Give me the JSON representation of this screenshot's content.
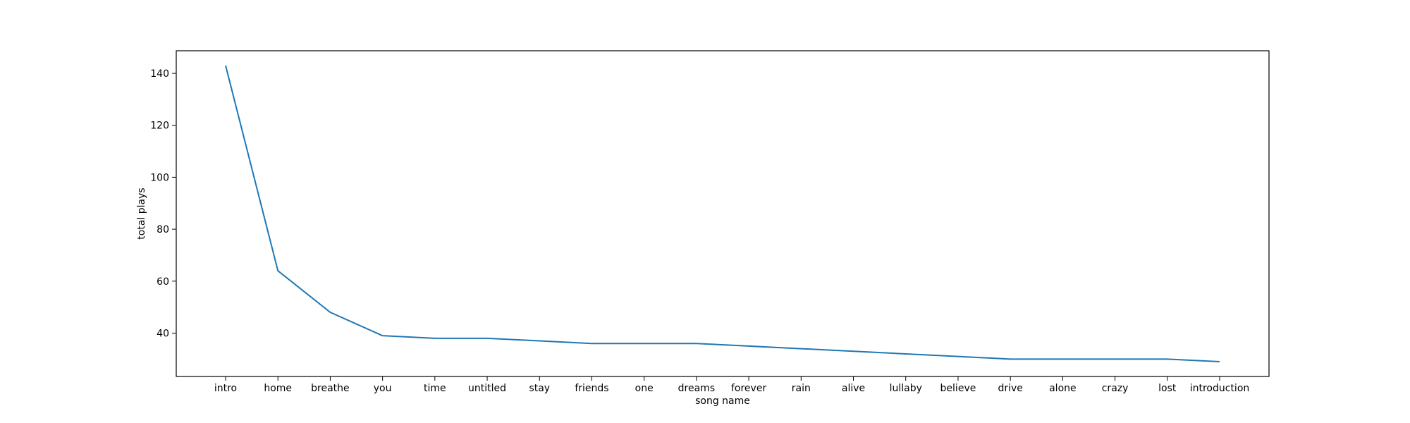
{
  "chart_data": {
    "type": "line",
    "title": "",
    "xlabel": "song name",
    "ylabel": "total plays",
    "categories": [
      "intro",
      "home",
      "breathe",
      "you",
      "time",
      "untitled",
      "stay",
      "friends",
      "one",
      "dreams",
      "forever",
      "rain",
      "alive",
      "lullaby",
      "believe",
      "drive",
      "alone",
      "crazy",
      "lost",
      "introduction"
    ],
    "series": [
      {
        "values": [
          143,
          64,
          48,
          39,
          38,
          38,
          37,
          36,
          36,
          36,
          35,
          34,
          33,
          32,
          31,
          30,
          30,
          30,
          30,
          29
        ]
      }
    ],
    "ylim": [
      23.3,
      148.7
    ],
    "yticks": [
      40,
      60,
      80,
      100,
      120,
      140
    ],
    "grid": false,
    "legend": "none",
    "line_color": "#1f77b4"
  }
}
